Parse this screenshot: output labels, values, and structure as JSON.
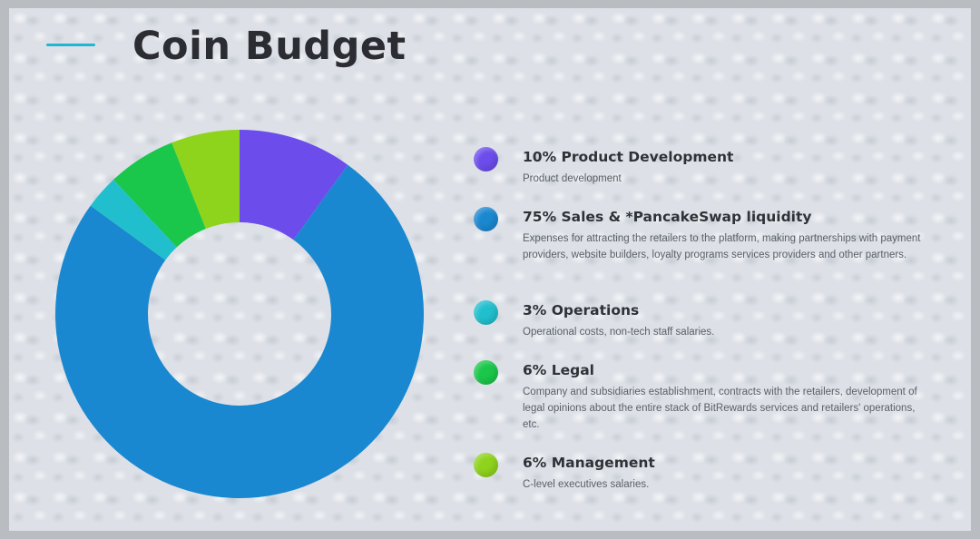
{
  "title": "Coin Budget",
  "colors": {
    "accent_line": "#1fb5d3",
    "title": "#2b2d33"
  },
  "chart_data": {
    "type": "pie",
    "variant": "donut",
    "title": "Coin Budget",
    "slices": [
      {
        "label": "Product Development",
        "value": 10,
        "color": "#6c4dec"
      },
      {
        "label": "Sales & *PancakeSwap liquidity",
        "value": 75,
        "color": "#1a88d0"
      },
      {
        "label": "Operations",
        "value": 3,
        "color": "#21bfcd"
      },
      {
        "label": "Legal",
        "value": 6,
        "color": "#1ac74a"
      },
      {
        "label": "Management",
        "value": 6,
        "color": "#8ed31c"
      }
    ]
  },
  "legend": [
    {
      "title": "10% Product Development",
      "description": "Product development",
      "color": "#6c4dec"
    },
    {
      "title": "75% Sales & *PancakeSwap liquidity",
      "description": "Expenses for attracting the retailers to the platform, making partnerships with payment providers, website builders, loyalty programs services providers and other partners.",
      "color": "#1a88d0"
    },
    {
      "title": "3% Operations",
      "description": "Operational costs, non-tech staff salaries.",
      "color": "#21bfcd"
    },
    {
      "title": "6% Legal",
      "description": "Company and subsidiaries establishment, contracts with the retailers, development of legal opinions about the entire stack of BitRewards services and retailers' operations, etc.",
      "color": "#1ac74a"
    },
    {
      "title": "6% Management",
      "description": "C-level executives salaries.",
      "color": "#8ed31c"
    }
  ]
}
